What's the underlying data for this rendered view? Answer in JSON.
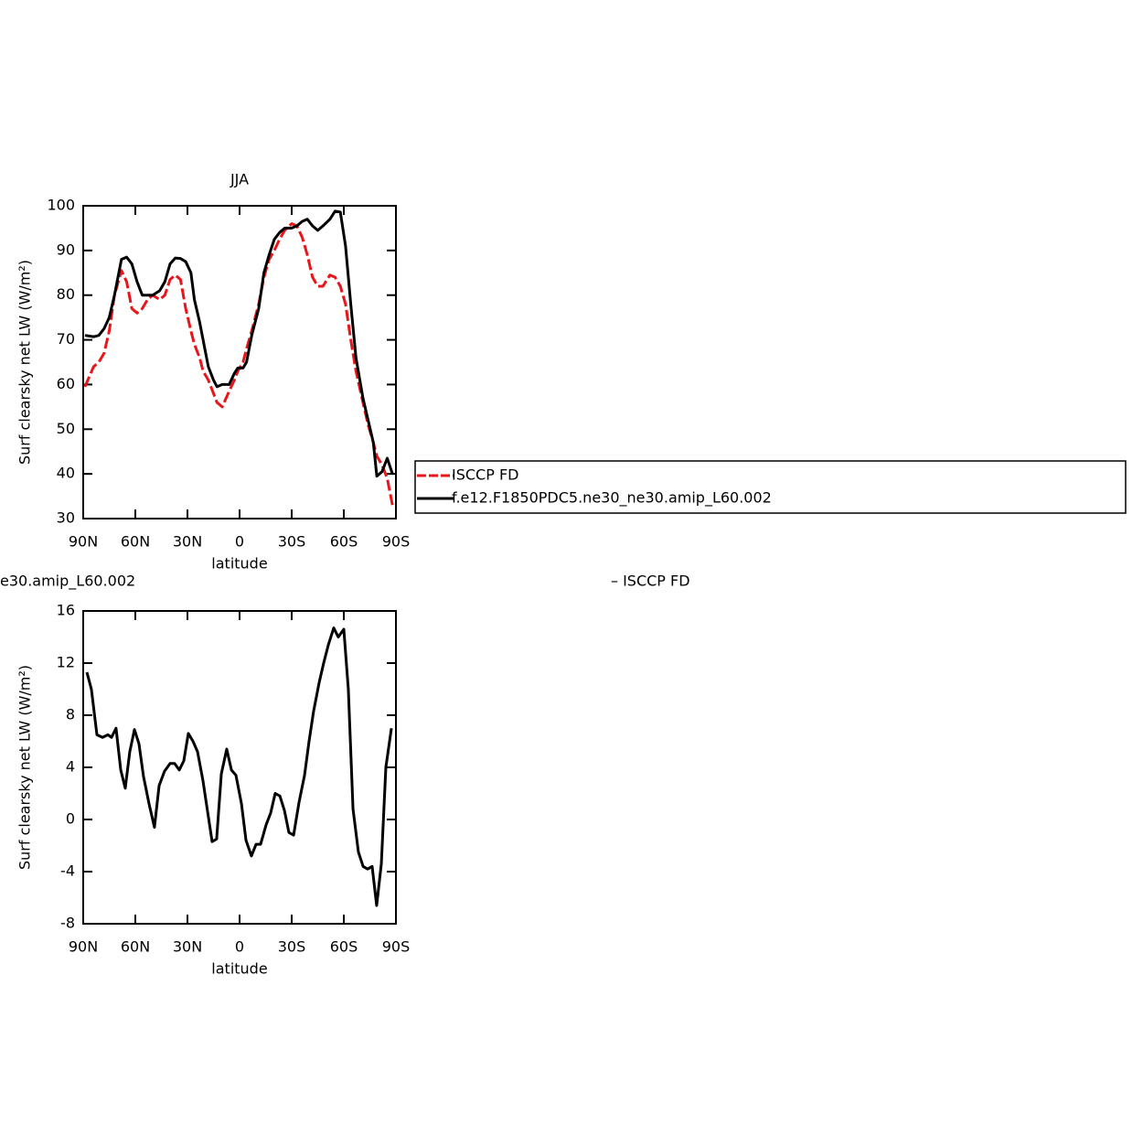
{
  "chart_data": [
    {
      "type": "line",
      "title": "JJA",
      "xlabel": "latitude",
      "ylabel": "Surf clearsky net LW (W/m²)",
      "xlim": [
        90,
        -90
      ],
      "ylim": [
        30,
        100
      ],
      "xticks": [
        {
          "value": 90,
          "label": "90N"
        },
        {
          "value": 60,
          "label": "60N"
        },
        {
          "value": 30,
          "label": "30N"
        },
        0,
        {
          "value": -30,
          "label": "30S"
        },
        {
          "value": -60,
          "label": "60S"
        },
        {
          "value": -90,
          "label": "90S"
        }
      ],
      "yticks": [
        30,
        40,
        50,
        60,
        70,
        80,
        90,
        100
      ],
      "x": [
        89,
        84,
        81,
        78,
        75,
        72,
        68,
        65,
        62,
        59,
        56,
        53,
        50,
        46,
        43,
        40,
        37,
        34,
        31,
        28,
        26,
        23,
        21,
        18,
        15,
        13,
        10,
        6,
        3,
        1,
        -2,
        -4,
        -7,
        -11,
        -14,
        -17,
        -20,
        -23,
        -26,
        -30,
        -33,
        -36,
        -39,
        -42,
        -45,
        -48,
        -52,
        -55,
        -58,
        -61,
        -64,
        -67,
        -71,
        -74,
        -77,
        -79,
        -82,
        -85,
        -88
      ],
      "legend": "right",
      "series": [
        {
          "name": "ISCCP FD",
          "color": "#e8161a",
          "dash": true,
          "values": [
            59.5,
            64,
            65,
            67,
            72,
            80,
            85.5,
            83,
            77,
            76,
            77,
            79,
            80,
            79,
            80,
            83.5,
            84.5,
            83.5,
            77,
            72,
            69,
            66,
            63,
            61,
            58,
            56,
            55,
            58.5,
            61,
            63,
            65,
            68,
            72,
            78,
            84,
            88,
            90,
            92.5,
            94.5,
            96,
            95.5,
            93,
            89,
            84,
            82,
            82,
            84.5,
            84,
            82,
            78,
            70,
            63,
            56,
            51,
            47,
            44,
            42,
            39,
            33
          ]
        },
        {
          "name": "f.e12.F1850PDC5.ne30_ne30.amip_L60.002",
          "color": "#000000",
          "dash": false,
          "values": [
            71,
            70.7,
            71,
            72.5,
            75,
            80,
            88,
            88.5,
            87,
            83,
            80,
            80,
            80,
            81,
            83,
            87,
            88.3,
            88.2,
            87.5,
            85,
            79,
            74,
            70,
            64,
            61,
            59.5,
            60,
            60,
            62.5,
            63.7,
            63.7,
            65,
            71,
            77,
            85,
            89,
            92.5,
            94,
            95,
            95,
            95.5,
            96.5,
            97,
            95.5,
            94.5,
            95.5,
            97,
            98.8,
            98.6,
            91,
            78,
            66,
            57,
            52,
            47,
            39.5,
            40.5,
            43.5,
            40
          ]
        }
      ]
    },
    {
      "type": "line",
      "title_left": "e30.amip_L60.002",
      "title_right": "– ISCCP FD",
      "xlabel": "latitude",
      "ylabel": "Surf clearsky net LW (W/m²)",
      "xlim": [
        90,
        -90
      ],
      "ylim": [
        -8,
        16
      ],
      "xticks": [
        {
          "value": 90,
          "label": "90N"
        },
        {
          "value": 60,
          "label": "60N"
        },
        {
          "value": 30,
          "label": "30N"
        },
        0,
        {
          "value": -30,
          "label": "30S"
        },
        {
          "value": -60,
          "label": "60S"
        },
        {
          "value": -90,
          "label": "90S"
        }
      ],
      "yticks": [
        -8,
        -4,
        0,
        4,
        8,
        12,
        16
      ],
      "x": [
        87.9,
        85.3,
        82.1,
        78.9,
        75.8,
        73.7,
        71.1,
        68.4,
        65.8,
        63.2,
        60.5,
        57.9,
        55.3,
        52.1,
        49,
        46.3,
        43.2,
        40,
        37.4,
        34.7,
        32.1,
        29.5,
        26.8,
        24.2,
        21.1,
        18.4,
        15.8,
        13.2,
        10.5,
        7.4,
        4.7,
        2.1,
        -1.1,
        -3.7,
        -6.8,
        -9.5,
        -12.1,
        -15.3,
        -17.9,
        -20.5,
        -23.2,
        -25.8,
        -28.4,
        -31.1,
        -34.2,
        -37.4,
        -40,
        -42.6,
        -45.8,
        -48.4,
        -51.1,
        -54.2,
        -56.8,
        -60,
        -62.6,
        -65.3,
        -68.4,
        -71.1,
        -73.7,
        -76.3,
        -78.9,
        -81.6,
        -84.2,
        -87.4
      ],
      "series": [
        {
          "color": "#000000",
          "dash": false,
          "values": [
            11.3,
            10,
            6.5,
            6.3,
            6.5,
            6.3,
            7,
            3.8,
            2.4,
            5.2,
            6.9,
            5.8,
            3.3,
            1.2,
            -0.6,
            2.6,
            3.7,
            4.3,
            4.3,
            3.8,
            4.5,
            6.6,
            6,
            5.2,
            3,
            0.6,
            -1.7,
            -1.5,
            3.5,
            5.4,
            3.8,
            3.4,
            1.2,
            -1.6,
            -2.8,
            -1.9,
            -1.9,
            -0.4,
            0.5,
            2,
            1.8,
            0.7,
            -1,
            -1.2,
            1.3,
            3.4,
            6,
            8.3,
            10.5,
            12,
            13.4,
            14.7,
            14,
            14.6,
            10,
            0.8,
            -2.5,
            -3.6,
            -3.8,
            -3.6,
            -6.6,
            -3.4,
            4,
            7
          ]
        }
      ]
    }
  ]
}
